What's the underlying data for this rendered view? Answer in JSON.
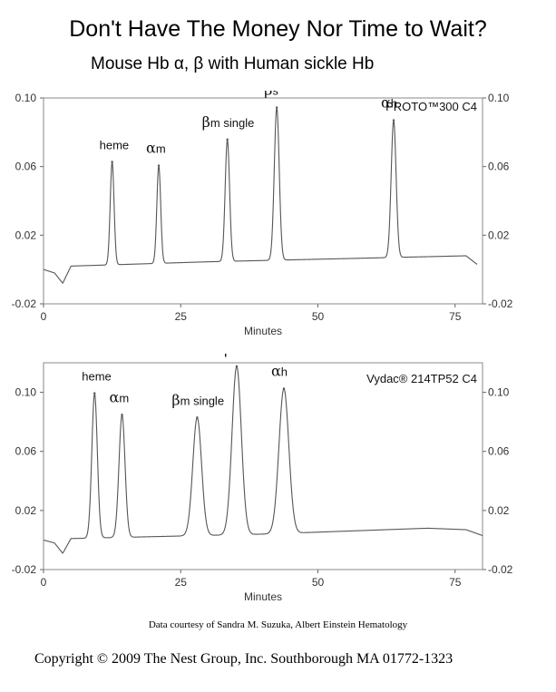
{
  "header": {
    "title": "Don't Have The Money Nor Time to Wait?",
    "subtitle": "Mouse Hb α, β with Human sickle Hb"
  },
  "footer": {
    "credit": "Data courtesy of Sandra M. Suzuka, Albert Einstein Hematology",
    "copyright": "Copyright © 2009 The Nest Group, Inc. Southborough MA  01772-1323"
  },
  "chart_data": [
    {
      "type": "line",
      "title": "PROTO™300 C4",
      "xlabel": "Minutes",
      "ylabel": "",
      "xlim": [
        0,
        80
      ],
      "ylim": [
        -0.02,
        0.1
      ],
      "x_ticks": [
        "0",
        "25",
        "50",
        "75"
      ],
      "y_ticks_left": [
        "0.10",
        "0.06",
        "0.02",
        "-0.02"
      ],
      "y_ticks_right": [
        "0.10",
        "0.06",
        "0.02",
        "-0.02"
      ],
      "grid": false,
      "baseline": [
        [
          0,
          0.0
        ],
        [
          2,
          -0.002
        ],
        [
          3.5,
          -0.008
        ],
        [
          5,
          0.002
        ],
        [
          30,
          0.0045
        ],
        [
          77,
          0.008
        ],
        [
          79,
          0.003
        ]
      ],
      "peaks": [
        {
          "label": "heme",
          "greek": "",
          "sub": "",
          "x": 12.5,
          "height": 0.06,
          "width": 0.35
        },
        {
          "label": "",
          "greek": "α",
          "sub": "m",
          "x": 21.0,
          "height": 0.057,
          "width": 0.35
        },
        {
          "label": " single",
          "greek": "β",
          "sub": "m",
          "x": 33.5,
          "height": 0.071,
          "width": 0.4
        },
        {
          "label": "",
          "greek": "β",
          "sub": "s",
          "x": 42.5,
          "height": 0.089,
          "width": 0.45
        },
        {
          "label": "",
          "greek": "α",
          "sub": "h",
          "x": 63.8,
          "height": 0.08,
          "width": 0.45
        }
      ]
    },
    {
      "type": "line",
      "title": "Vydac® 214TP52 C4",
      "xlabel": "Minutes",
      "ylabel": "",
      "xlim": [
        0,
        80
      ],
      "ylim": [
        -0.02,
        0.12
      ],
      "x_ticks": [
        "0",
        "25",
        "50",
        "75"
      ],
      "y_ticks_left": [
        "0.10",
        "0.06",
        "0.02",
        "-0.02"
      ],
      "y_ticks_right": [
        "0.10",
        "0.06",
        "0.02",
        "-0.02"
      ],
      "grid": false,
      "baseline": [
        [
          0,
          0.0
        ],
        [
          2,
          -0.002
        ],
        [
          3.5,
          -0.009
        ],
        [
          5,
          0.001
        ],
        [
          40,
          0.004
        ],
        [
          70,
          0.008
        ],
        [
          77,
          0.007
        ],
        [
          80,
          0.003
        ]
      ],
      "peaks": [
        {
          "label": "heme",
          "greek": "",
          "sub": "",
          "x": 9.3,
          "height": 0.098,
          "width": 0.5
        },
        {
          "label": "",
          "greek": "α",
          "sub": "m",
          "x": 14.3,
          "height": 0.083,
          "width": 0.55
        },
        {
          "label": " single",
          "greek": "β",
          "sub": "m",
          "x": 28.0,
          "height": 0.08,
          "width": 0.8
        },
        {
          "label": "",
          "greek": "β",
          "sub": "s",
          "x": 35.2,
          "height": 0.114,
          "width": 0.85
        },
        {
          "label": "",
          "greek": "α",
          "sub": "h",
          "x": 43.8,
          "height": 0.098,
          "width": 0.9
        }
      ]
    }
  ]
}
